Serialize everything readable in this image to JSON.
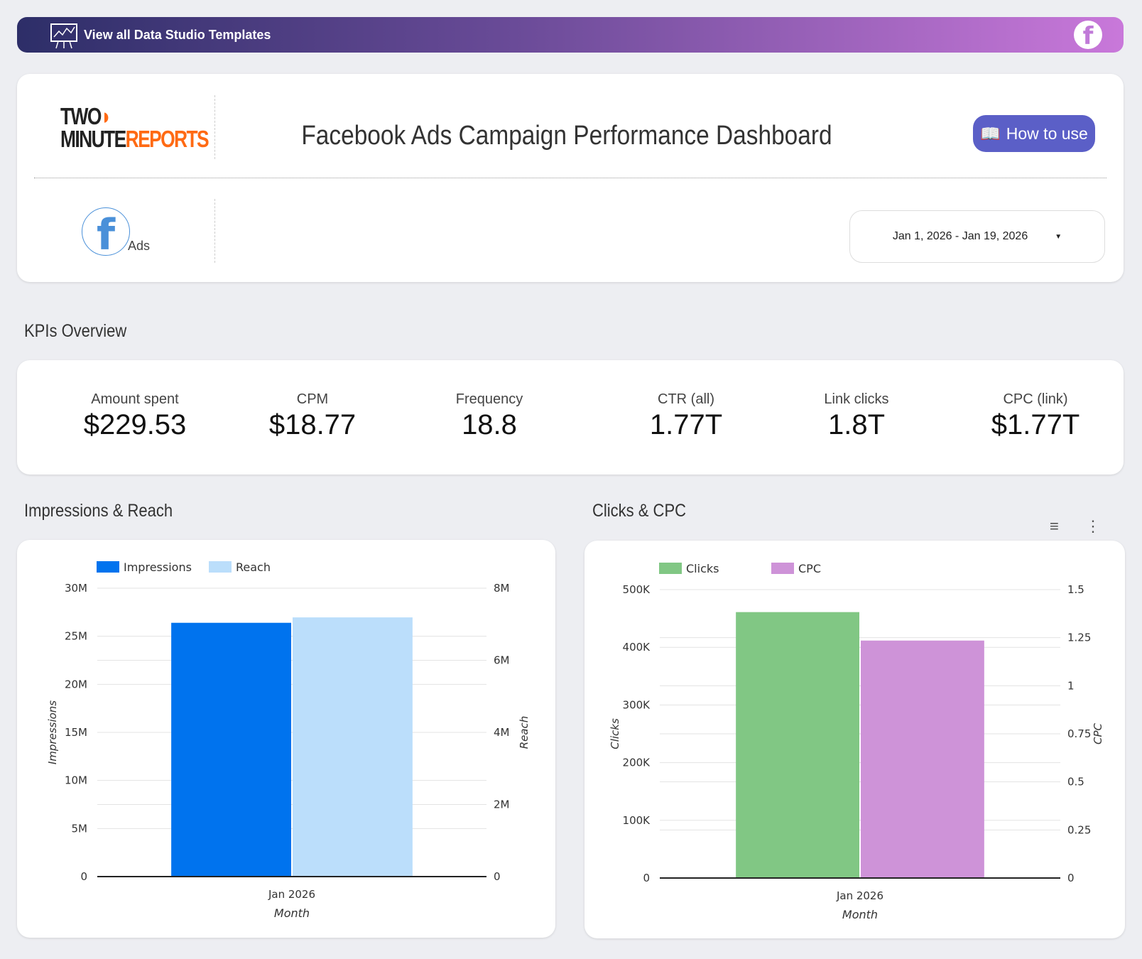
{
  "banner": {
    "label": "View all Data Studio Templates",
    "icon": "presentation-chart-icon",
    "right_icon": "facebook-icon"
  },
  "header": {
    "logo_top": "TWO",
    "logo_bottom_a": "MINUTE",
    "logo_bottom_b": "REPORTS",
    "title": "Facebook Ads Campaign Performance Dashboard",
    "how_to_use": "How to use",
    "source_label": "Ads",
    "date_range": "Jan 1, 2026 - Jan 19, 2026"
  },
  "sections": {
    "kpis": "KPIs Overview",
    "chart1": "Impressions & Reach",
    "chart2": "Clicks & CPC"
  },
  "kpis": [
    {
      "label": "Amount spent",
      "value": "$229.53"
    },
    {
      "label": "CPM",
      "value": "$18.77"
    },
    {
      "label": "Frequency",
      "value": "18.8"
    },
    {
      "label": "CTR (all)",
      "value": "1.77T"
    },
    {
      "label": "Link clicks",
      "value": "1.8T"
    },
    {
      "label": "CPC (link)",
      "value": "$1.77T"
    }
  ],
  "colors": {
    "impressions": "#0073ee",
    "reach": "#bbdefb",
    "clicks": "#81c784",
    "cpc": "#ce93d8",
    "button": "#5b5fc7",
    "logo_accent": "#ff6a13"
  },
  "chart_data": [
    {
      "type": "bar",
      "categories": [
        "Jan 2026"
      ],
      "xlabel": "Month",
      "legend": "top-left",
      "left_axis": {
        "label": "Impressions",
        "range": [
          0,
          30000000
        ],
        "ticks": [
          "0",
          "5M",
          "10M",
          "15M",
          "20M",
          "25M",
          "30M"
        ]
      },
      "right_axis": {
        "label": "Reach",
        "range": [
          0,
          8000000
        ],
        "ticks": [
          "0",
          "2M",
          "4M",
          "6M",
          "8M"
        ]
      },
      "series": [
        {
          "name": "Impressions",
          "values": [
            26400000
          ],
          "axis": "left"
        },
        {
          "name": "Reach",
          "values": [
            7190000
          ],
          "axis": "right"
        }
      ]
    },
    {
      "type": "bar",
      "categories": [
        "Jan 2026"
      ],
      "xlabel": "Month",
      "legend": "top-left",
      "left_axis": {
        "label": "Clicks",
        "range": [
          0,
          500000
        ],
        "ticks": [
          "0",
          "100K",
          "200K",
          "300K",
          "400K",
          "500K"
        ]
      },
      "right_axis": {
        "label": "CPC",
        "range": [
          0,
          1.5
        ],
        "ticks": [
          "0",
          "0.25",
          "0.5",
          "0.75",
          "1",
          "1.25",
          "1.5"
        ]
      },
      "series": [
        {
          "name": "Clicks",
          "values": [
            461000
          ],
          "axis": "left"
        },
        {
          "name": "CPC",
          "values": [
            1.235
          ],
          "axis": "right"
        }
      ]
    }
  ]
}
